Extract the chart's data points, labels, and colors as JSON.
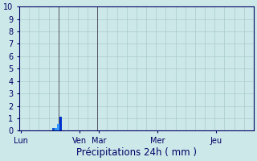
{
  "xlabel": "Précipitations 24h ( mm )",
  "background_color": "#cce8e8",
  "grid_color": "#aacccc",
  "ylim": [
    0,
    10
  ],
  "yticks": [
    0,
    1,
    2,
    3,
    4,
    5,
    6,
    7,
    8,
    9,
    10
  ],
  "day_labels": [
    "Lun",
    "Ven",
    "Mar",
    "Mer",
    "Jeu"
  ],
  "day_tick_positions": [
    0.5,
    24.5,
    32.5,
    56.5,
    80.5
  ],
  "vline_positions": [
    16,
    32
  ],
  "vline_color": "#555566",
  "xlim": [
    0,
    96
  ],
  "bar_data": [
    {
      "x": 14,
      "height": 0.2,
      "color": "#1155cc"
    },
    {
      "x": 15,
      "height": 0.25,
      "color": "#3399ff"
    },
    {
      "x": 16,
      "height": 0.55,
      "color": "#3399ff"
    },
    {
      "x": 17,
      "height": 1.1,
      "color": "#0033cc"
    }
  ],
  "bar_width": 0.9,
  "xlabel_fontsize": 8.5,
  "tick_fontsize": 7,
  "tick_color": "#000066",
  "spine_color": "#000066"
}
